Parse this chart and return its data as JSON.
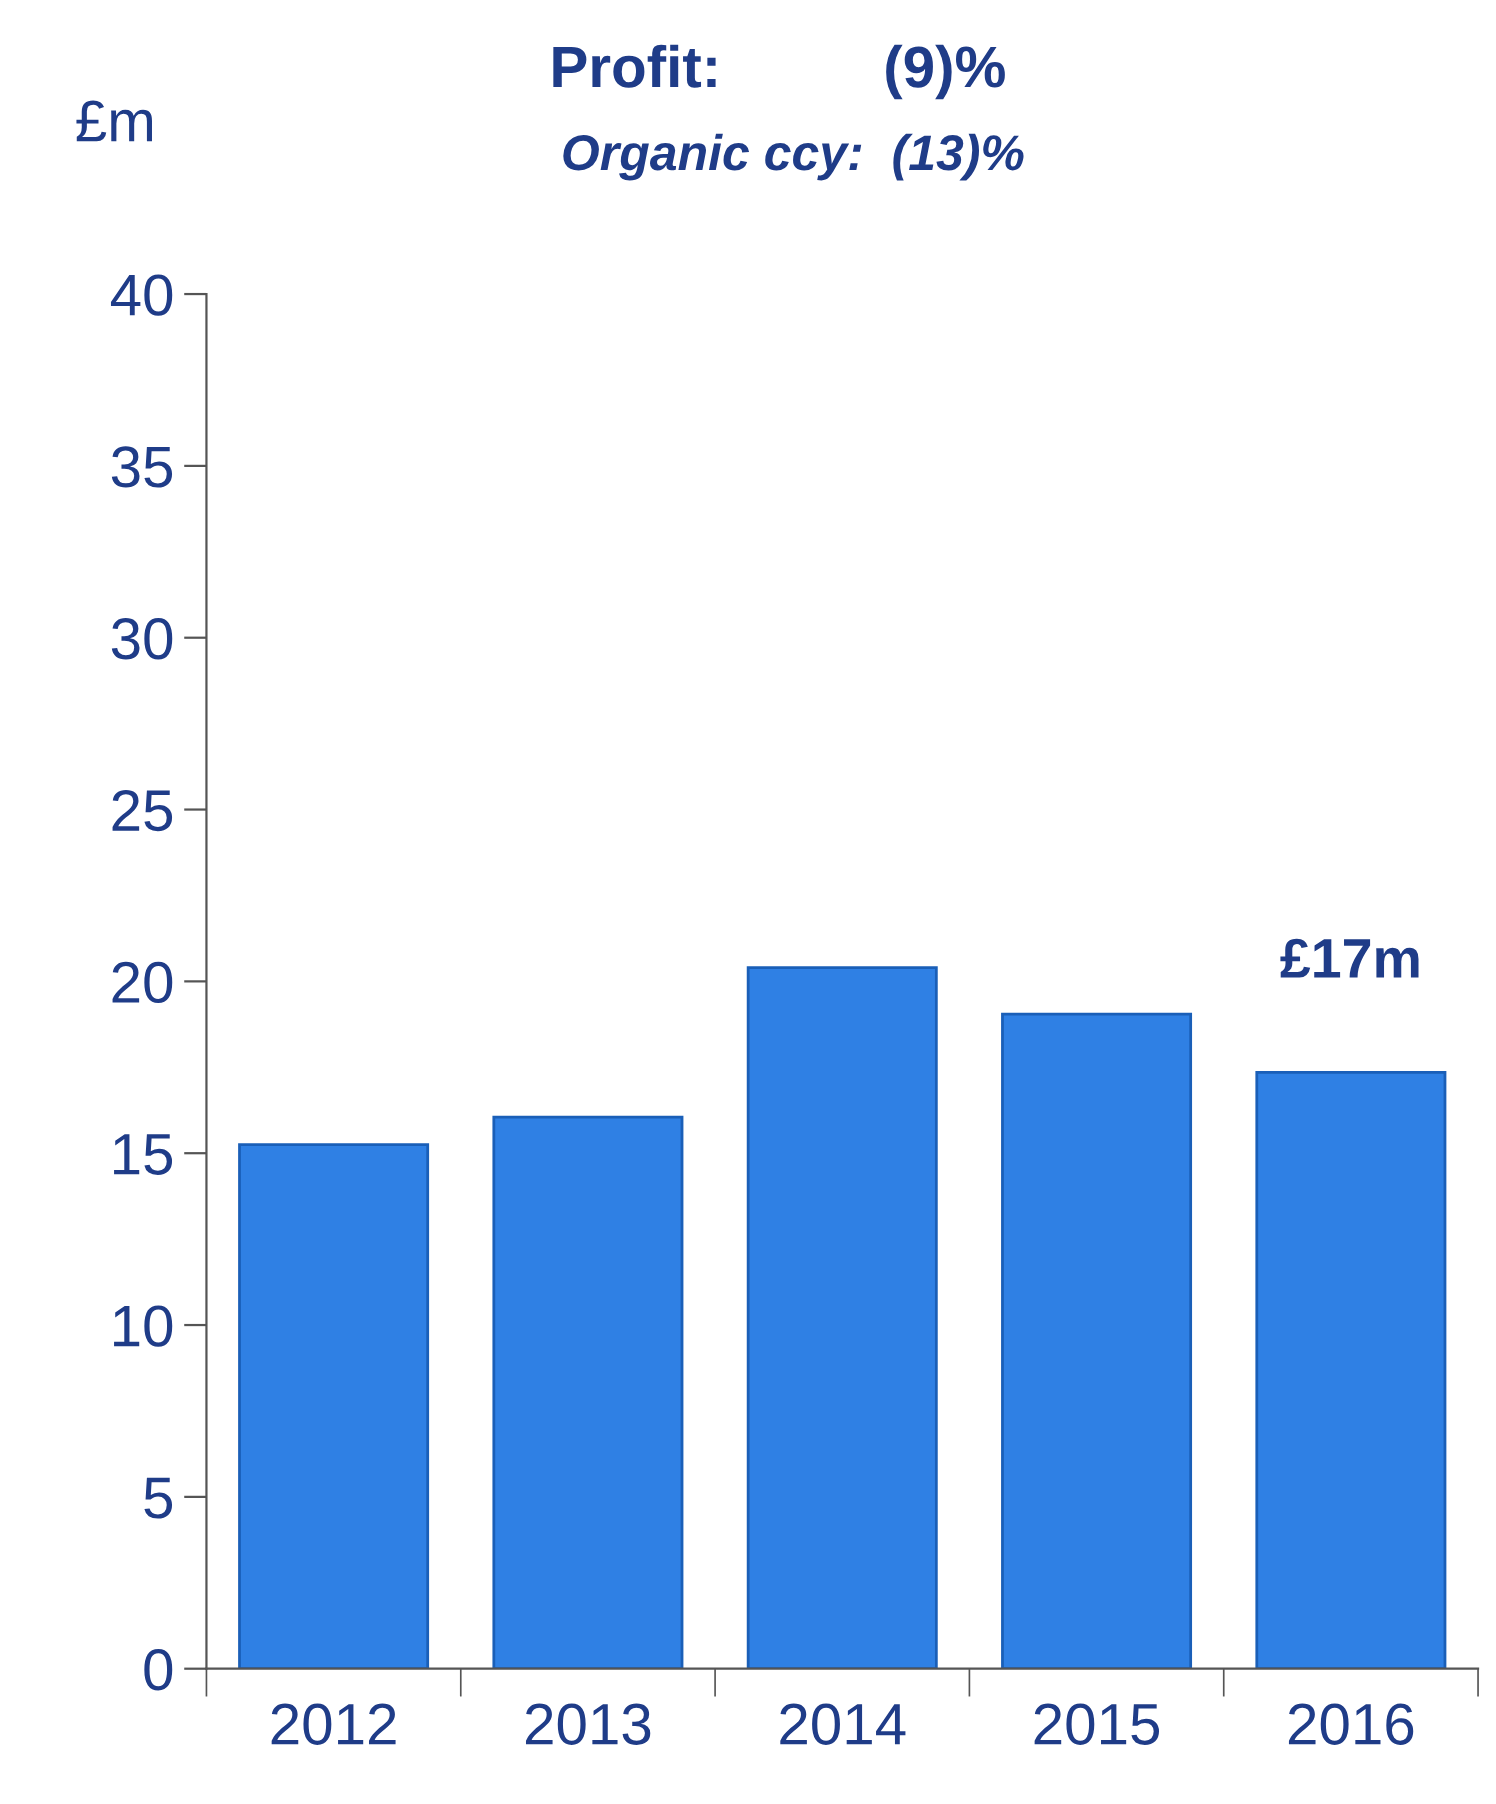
{
  "chart_data": {
    "type": "bar",
    "title": "Profit:          (9)%",
    "subtitle": "Organic ccy:  (13)%",
    "ylabel": "£m",
    "categories": [
      "2012",
      "2013",
      "2014",
      "2015",
      "2016"
    ],
    "values": [
      15.25,
      16.05,
      20.4,
      19.05,
      17.35
    ],
    "color": "#2f80e4",
    "ylim": [
      0,
      40
    ],
    "yticks": [
      0,
      5,
      10,
      15,
      20,
      25,
      30,
      35,
      40
    ],
    "annotations": [
      {
        "text": "£17m",
        "x": "2016",
        "y": 17.35
      }
    ],
    "grid": false,
    "legend": false
  }
}
